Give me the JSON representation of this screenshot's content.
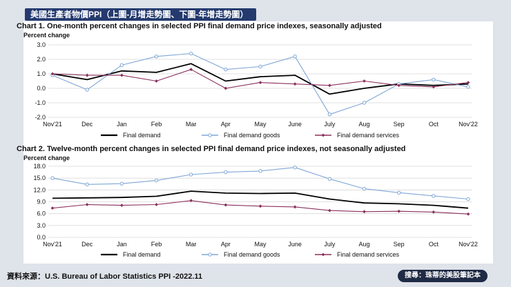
{
  "page": {
    "banner": "美國生產者物價PPI（上圖-月增走勢圖、下圖-年增走勢圖）",
    "source": "資料來源：U.S. Bureau of Labor Statistics PPI -2022.11",
    "badge": "搜尋：珠蒂的美股筆記本"
  },
  "colors": {
    "final_demand": "#000000",
    "goods": "#7fa6d6",
    "services": "#8a2f5c",
    "grid": "#d9d9d9"
  },
  "chart_data": [
    {
      "type": "line",
      "title": "Chart 1. One-month percent changes in selected PPI final demand price indexes, seasonally adjusted",
      "ylabel": "Percent change",
      "xlabel": "",
      "categories": [
        "Nov'21",
        "Dec",
        "Jan",
        "Feb",
        "Mar",
        "Apr",
        "May",
        "June",
        "July",
        "Aug",
        "Sep",
        "Oct",
        "Nov'22"
      ],
      "yticks": [
        "3.0",
        "2.0",
        "1.0",
        "0.0",
        "-1.0",
        "-2.0"
      ],
      "ylim": [
        -2.0,
        3.0
      ],
      "legend_position": "bottom",
      "series": [
        {
          "name": "Final demand",
          "values": [
            1.0,
            0.6,
            1.2,
            1.1,
            1.7,
            0.5,
            0.8,
            0.9,
            -0.4,
            0.0,
            0.3,
            0.2,
            0.3
          ]
        },
        {
          "name": "Final demand goods",
          "values": [
            0.9,
            -0.1,
            1.6,
            2.2,
            2.4,
            1.3,
            1.5,
            2.2,
            -1.8,
            -1.0,
            0.3,
            0.6,
            0.1
          ]
        },
        {
          "name": "Final demand services",
          "values": [
            1.0,
            0.9,
            0.9,
            0.5,
            1.3,
            0.0,
            0.4,
            0.3,
            0.2,
            0.5,
            0.2,
            0.1,
            0.4
          ]
        }
      ]
    },
    {
      "type": "line",
      "title": "Chart 2. Twelve-month percent changes in selected PPI final demand price indexes, not seasonally adjusted",
      "ylabel": "Percent change",
      "xlabel": "",
      "categories": [
        "Nov'21",
        "Dec",
        "Jan",
        "Feb",
        "Mar",
        "Apr",
        "May",
        "June",
        "July",
        "Aug",
        "Sep",
        "Oct",
        "Nov'22"
      ],
      "yticks": [
        "18.0",
        "15.0",
        "12.0",
        "9.0",
        "6.0",
        "3.0",
        "0.0"
      ],
      "ylim": [
        0.0,
        18.0
      ],
      "legend_position": "bottom",
      "series": [
        {
          "name": "Final demand",
          "values": [
            9.9,
            10.0,
            10.1,
            10.4,
            11.7,
            11.2,
            11.1,
            11.2,
            9.7,
            8.7,
            8.5,
            8.1,
            7.4
          ]
        },
        {
          "name": "Final demand goods",
          "values": [
            15.0,
            13.4,
            13.6,
            14.4,
            15.9,
            16.5,
            16.8,
            17.7,
            14.8,
            12.3,
            11.3,
            10.5,
            9.7
          ]
        },
        {
          "name": "Final demand services",
          "values": [
            7.4,
            8.3,
            8.1,
            8.3,
            9.3,
            8.2,
            7.9,
            7.7,
            6.8,
            6.5,
            6.6,
            6.4,
            5.9
          ]
        }
      ]
    }
  ]
}
